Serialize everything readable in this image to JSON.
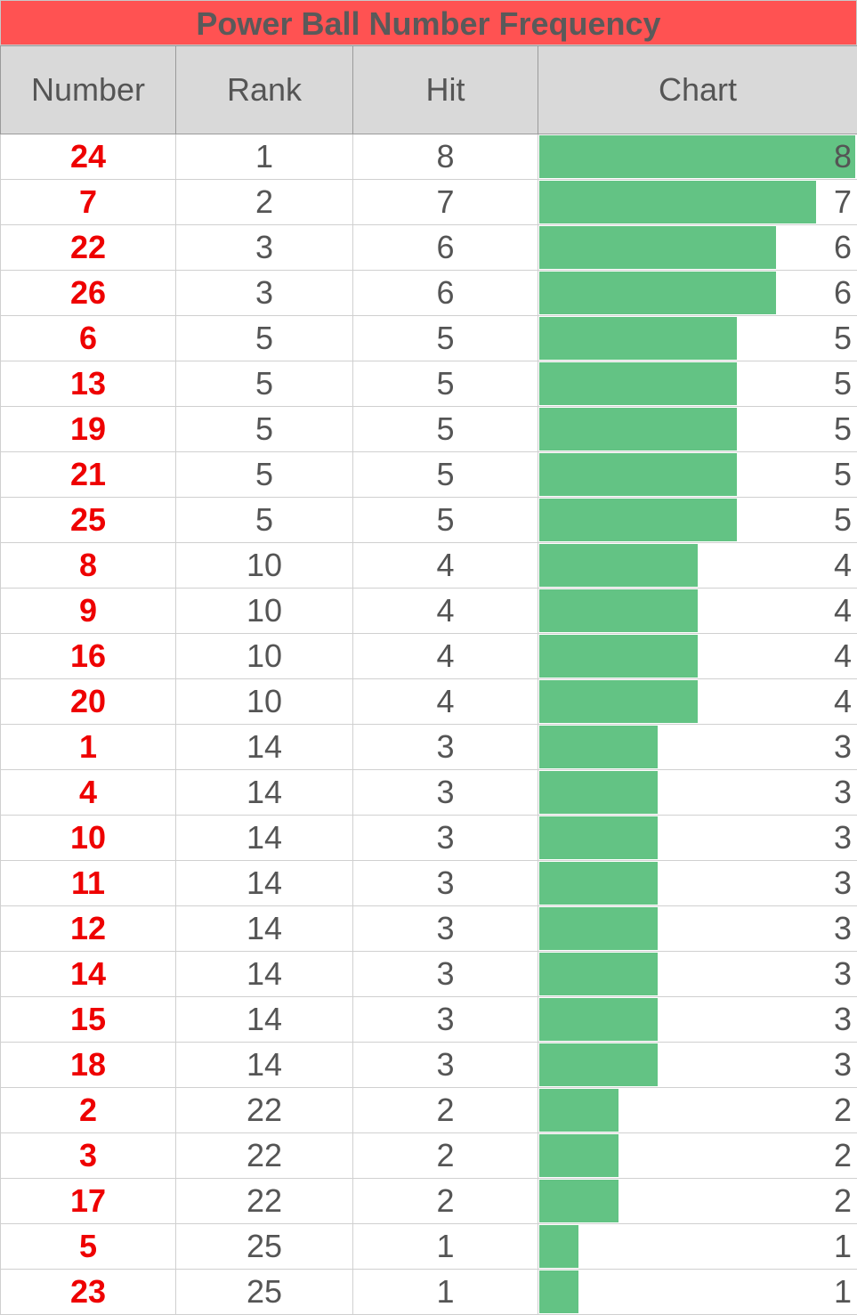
{
  "title": "Power Ball Number Frequency",
  "headers": {
    "number": "Number",
    "rank": "Rank",
    "hit": "Hit",
    "chart": "Chart"
  },
  "colors": {
    "title_bg": "#ff5252",
    "number_text": "#ee0000",
    "bar": "#63c384",
    "header_bg": "#d9d9d9"
  },
  "chart_data": {
    "type": "table",
    "columns": [
      "Number",
      "Rank",
      "Hit",
      "Chart"
    ],
    "max_hit": 8,
    "rows": [
      {
        "number": "24",
        "rank": "1",
        "hit": 8
      },
      {
        "number": "7",
        "rank": "2",
        "hit": 7
      },
      {
        "number": "22",
        "rank": "3",
        "hit": 6
      },
      {
        "number": "26",
        "rank": "3",
        "hit": 6
      },
      {
        "number": "6",
        "rank": "5",
        "hit": 5
      },
      {
        "number": "13",
        "rank": "5",
        "hit": 5
      },
      {
        "number": "19",
        "rank": "5",
        "hit": 5
      },
      {
        "number": "21",
        "rank": "5",
        "hit": 5
      },
      {
        "number": "25",
        "rank": "5",
        "hit": 5
      },
      {
        "number": "8",
        "rank": "10",
        "hit": 4
      },
      {
        "number": "9",
        "rank": "10",
        "hit": 4
      },
      {
        "number": "16",
        "rank": "10",
        "hit": 4
      },
      {
        "number": "20",
        "rank": "10",
        "hit": 4
      },
      {
        "number": "1",
        "rank": "14",
        "hit": 3
      },
      {
        "number": "4",
        "rank": "14",
        "hit": 3
      },
      {
        "number": "10",
        "rank": "14",
        "hit": 3
      },
      {
        "number": "11",
        "rank": "14",
        "hit": 3
      },
      {
        "number": "12",
        "rank": "14",
        "hit": 3
      },
      {
        "number": "14",
        "rank": "14",
        "hit": 3
      },
      {
        "number": "15",
        "rank": "14",
        "hit": 3
      },
      {
        "number": "18",
        "rank": "14",
        "hit": 3
      },
      {
        "number": "2",
        "rank": "22",
        "hit": 2
      },
      {
        "number": "3",
        "rank": "22",
        "hit": 2
      },
      {
        "number": "17",
        "rank": "22",
        "hit": 2
      },
      {
        "number": "5",
        "rank": "25",
        "hit": 1
      },
      {
        "number": "23",
        "rank": "25",
        "hit": 1
      }
    ]
  }
}
